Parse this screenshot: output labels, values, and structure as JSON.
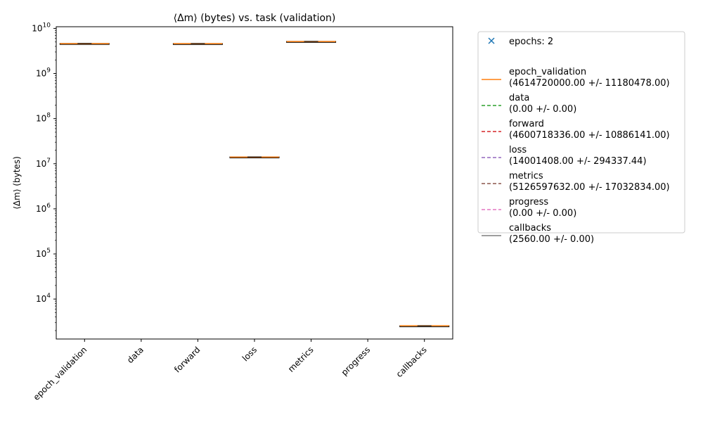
{
  "chart_data": {
    "type": "box",
    "title": "⟨Δm⟩ (bytes) vs. task (validation)",
    "xlabel": "",
    "ylabel": "⟨Δm⟩ (bytes)",
    "yscale": "log",
    "ylim": [
      1300,
      10900000000
    ],
    "yticks": [
      {
        "value": 10000,
        "base": "10",
        "exp": "4"
      },
      {
        "value": 100000,
        "base": "10",
        "exp": "5"
      },
      {
        "value": 1000000,
        "base": "10",
        "exp": "6"
      },
      {
        "value": 10000000,
        "base": "10",
        "exp": "7"
      },
      {
        "value": 100000000,
        "base": "10",
        "exp": "8"
      },
      {
        "value": 1000000000,
        "base": "10",
        "exp": "9"
      },
      {
        "value": 10000000000,
        "base": "10",
        "exp": "10"
      }
    ],
    "categories": [
      "epoch_validation",
      "data",
      "forward",
      "loss",
      "metrics",
      "progress",
      "callbacks"
    ],
    "boxes": [
      {
        "category": "epoch_validation",
        "low": 4580000000,
        "high": 4650000000,
        "median": 4614720000,
        "visible": true
      },
      {
        "category": "data",
        "low": 0,
        "high": 0,
        "median": 0,
        "visible": false
      },
      {
        "category": "forward",
        "low": 4570000000,
        "high": 4630000000,
        "median": 4600718336,
        "visible": true
      },
      {
        "category": "loss",
        "low": 13800000,
        "high": 14200000,
        "median": 14001408,
        "visible": true
      },
      {
        "category": "metrics",
        "low": 5090000000,
        "high": 5160000000,
        "median": 5126597632,
        "visible": true
      },
      {
        "category": "progress",
        "low": 0,
        "high": 0,
        "median": 0,
        "visible": false
      },
      {
        "category": "callbacks",
        "low": 2560,
        "high": 2560,
        "median": 2560,
        "visible": true
      }
    ],
    "legend": {
      "placement": "outside-right",
      "entries": [
        {
          "label": "epochs: 2",
          "marker": "x",
          "color": "#1f77b4"
        },
        {
          "label": "epoch_validation",
          "stats": "(4614720000.00 +/- 11180478.00)",
          "style": "solid",
          "color": "#ff7f0e"
        },
        {
          "label": "data",
          "stats": "(0.00 +/- 0.00)",
          "style": "dashed",
          "color": "#2ca02c"
        },
        {
          "label": "forward",
          "stats": "(4600718336.00 +/- 10886141.00)",
          "style": "dashed",
          "color": "#d62728"
        },
        {
          "label": "loss",
          "stats": "(14001408.00 +/- 294337.44)",
          "style": "dashed",
          "color": "#9467bd"
        },
        {
          "label": "metrics",
          "stats": "(5126597632.00 +/- 17032834.00)",
          "style": "dashed",
          "color": "#8c564b"
        },
        {
          "label": "progress",
          "stats": "(0.00 +/- 0.00)",
          "style": "dashed",
          "color": "#e377c2"
        },
        {
          "label": "callbacks",
          "stats": "(2560.00 +/- 0.00)",
          "style": "solid",
          "color": "#7f7f7f"
        }
      ]
    },
    "colors": {
      "median": "#ff7f0e",
      "box": "#000000"
    }
  }
}
